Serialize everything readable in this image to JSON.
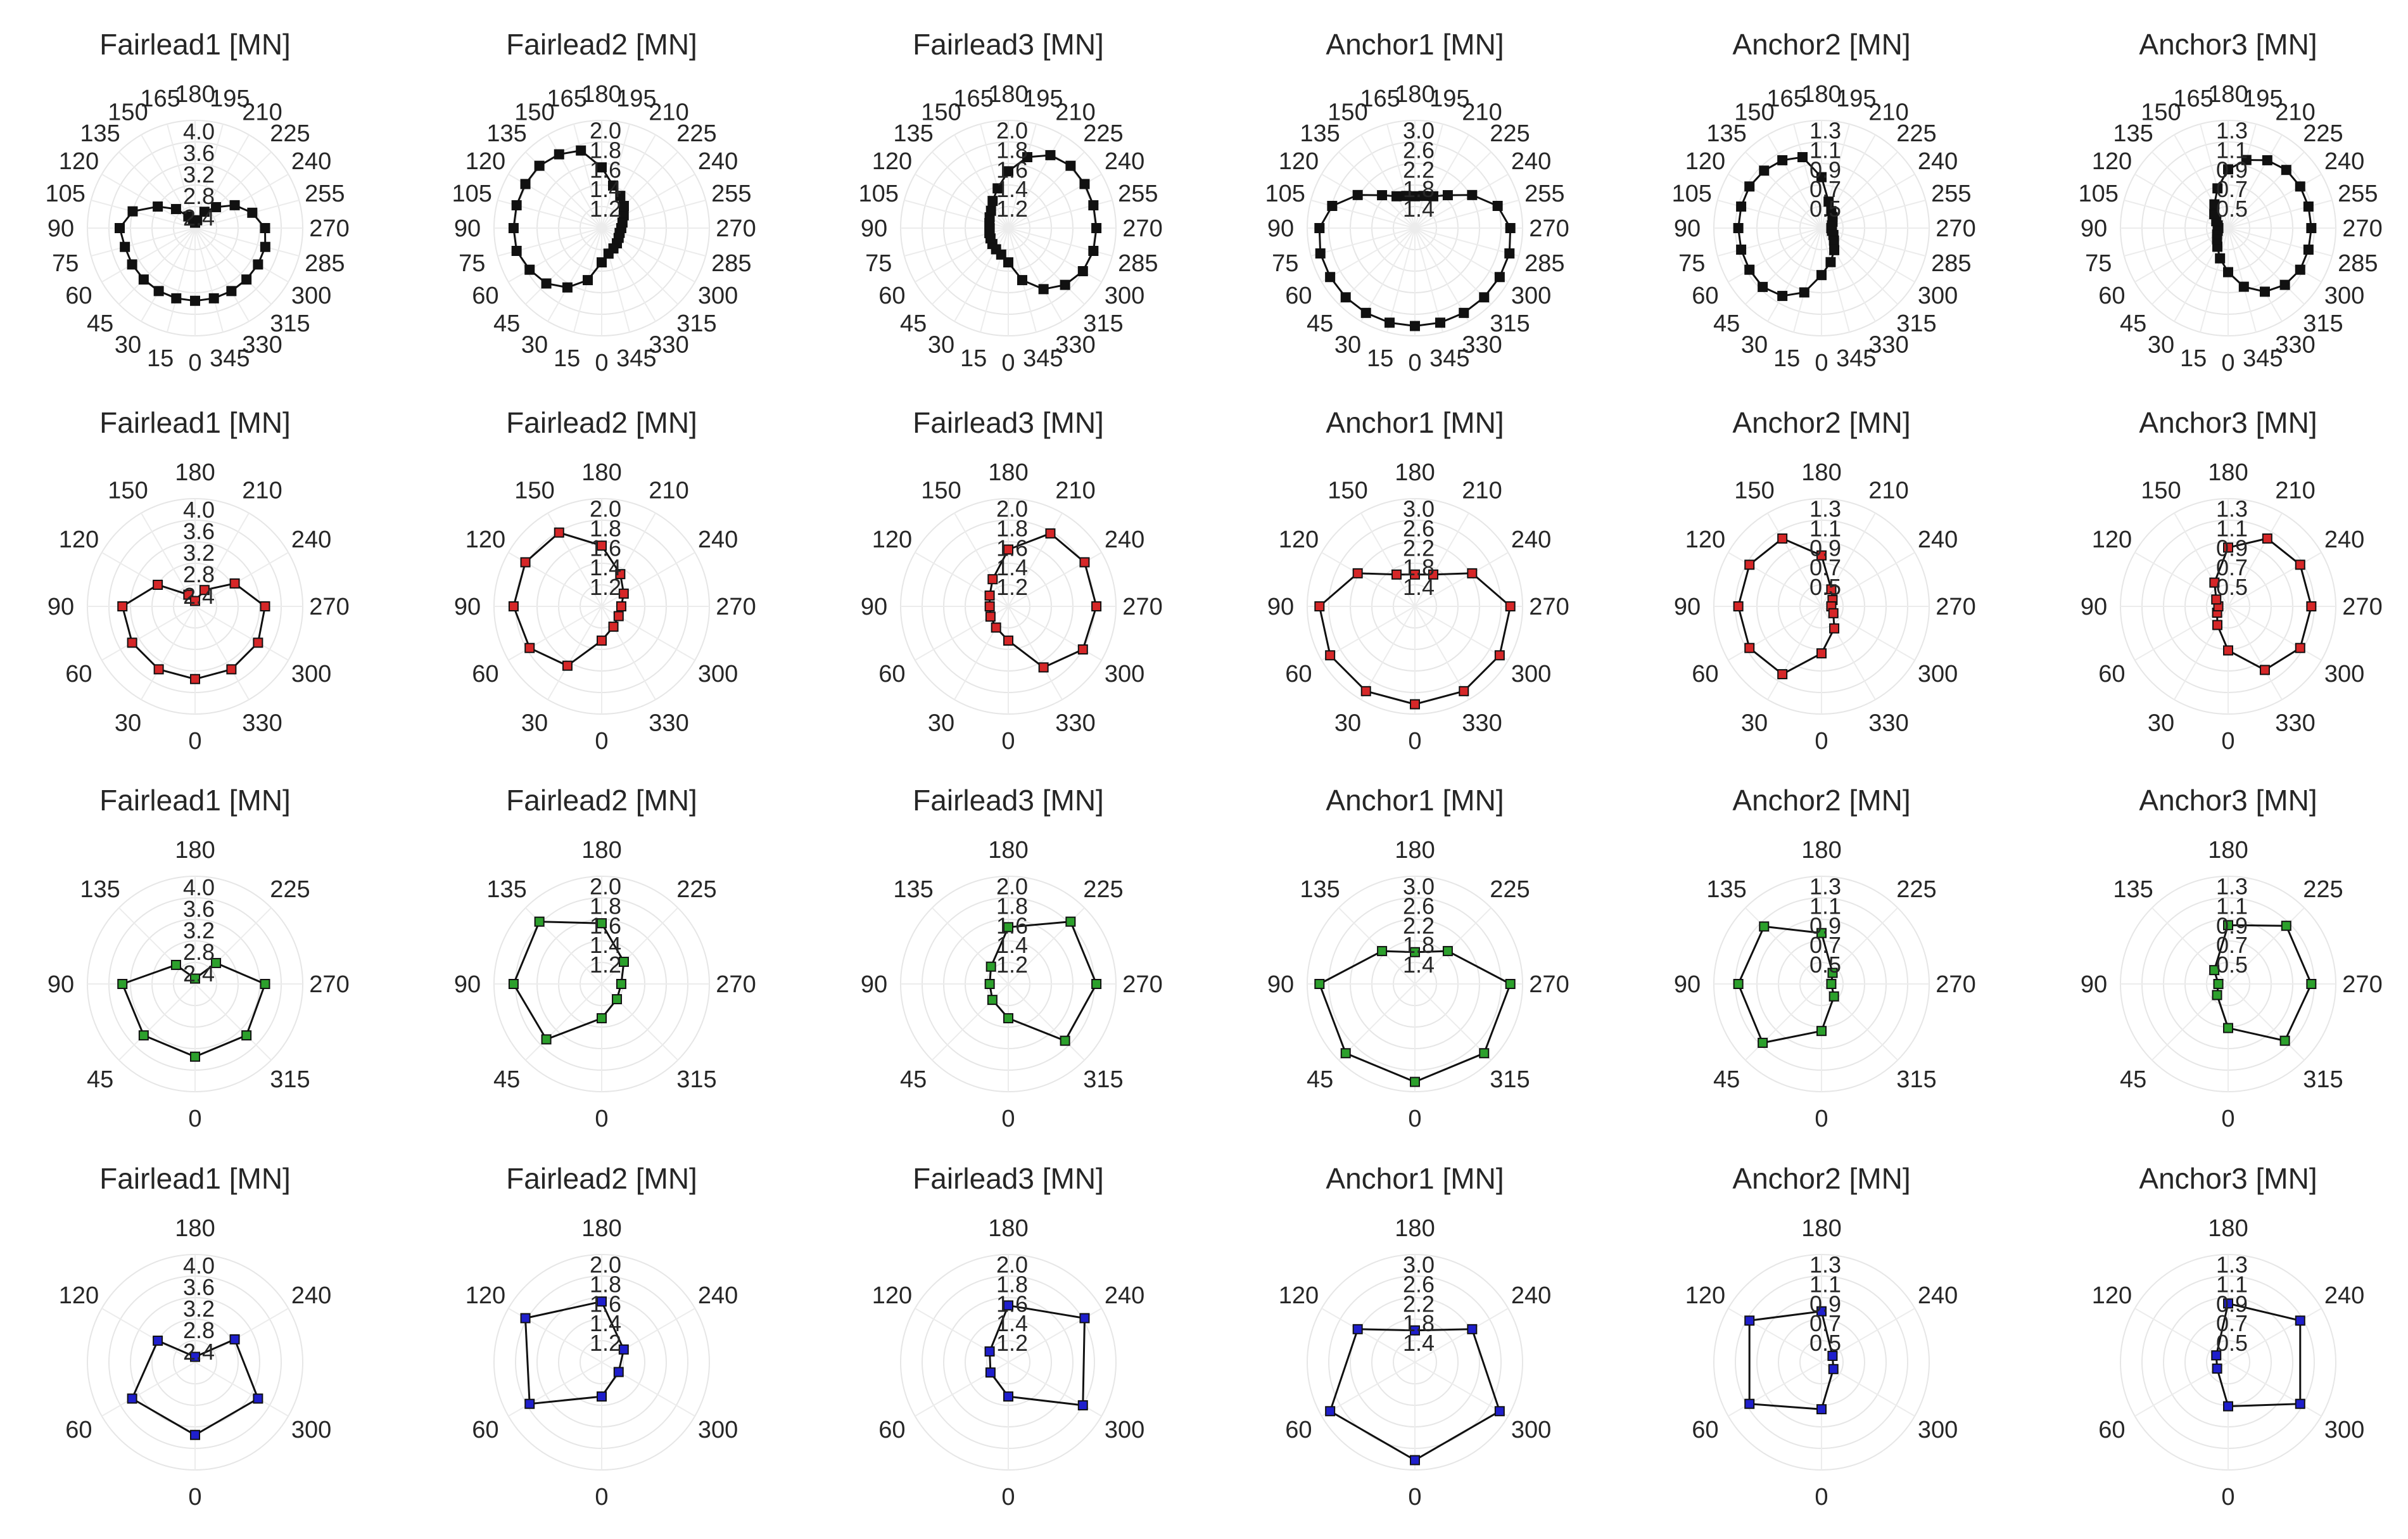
{
  "figure": {
    "rows": [
      {
        "marker_color": "#111111",
        "angles": [
          0,
          15,
          30,
          45,
          60,
          75,
          90,
          105,
          120,
          135,
          150,
          165,
          180,
          195,
          210,
          225,
          240,
          255,
          270,
          285,
          300,
          315,
          330,
          345
        ]
      },
      {
        "marker_color": "#d62728",
        "angles": [
          0,
          30,
          60,
          90,
          120,
          150,
          180,
          210,
          240,
          270,
          300,
          330
        ]
      },
      {
        "marker_color": "#2ca02c",
        "angles": [
          0,
          45,
          90,
          135,
          180,
          225,
          270,
          315
        ]
      },
      {
        "marker_color": "#1f1fcc",
        "angles": [
          0,
          60,
          120,
          180,
          240,
          300
        ]
      }
    ]
  },
  "chart_data": [
    {
      "type": "polar-line",
      "row": 1,
      "col": 1,
      "title": "Fairlead1 [MN]",
      "marker": "square",
      "marker_color": "#111111",
      "rlim": [
        2.2,
        4.2
      ],
      "rticks": [
        "2.4",
        "2.8",
        "3.2",
        "3.6",
        "4.0"
      ],
      "theta": [
        0,
        15,
        30,
        45,
        60,
        75,
        90,
        105,
        120,
        135,
        150,
        165,
        180,
        195,
        210,
        225,
        240,
        255,
        270,
        285,
        300,
        315,
        330,
        345
      ],
      "r": [
        3.55,
        3.55,
        3.55,
        3.55,
        3.55,
        3.55,
        3.6,
        3.4,
        3.0,
        2.7,
        2.45,
        2.35,
        2.3,
        2.35,
        2.55,
        2.75,
        3.05,
        3.3,
        3.5,
        3.55,
        3.55,
        3.55,
        3.55,
        3.55
      ]
    },
    {
      "type": "polar-line",
      "row": 1,
      "col": 2,
      "title": "Fairlead2 [MN]",
      "marker": "square",
      "marker_color": "#111111",
      "rlim": [
        1.0,
        2.1
      ],
      "rticks": [
        "1.2",
        "1.4",
        "1.6",
        "1.8",
        "2.0"
      ],
      "theta": [
        0,
        15,
        30,
        45,
        60,
        75,
        90,
        105,
        120,
        135,
        150,
        165,
        180,
        195,
        210,
        225,
        240,
        255,
        270,
        285,
        300,
        315,
        330,
        345
      ],
      "r": [
        1.35,
        1.55,
        1.7,
        1.8,
        1.85,
        1.9,
        1.9,
        1.9,
        1.9,
        1.9,
        1.87,
        1.82,
        1.62,
        1.45,
        1.38,
        1.32,
        1.26,
        1.22,
        1.2,
        1.19,
        1.2,
        1.22,
        1.24,
        1.27
      ]
    },
    {
      "type": "polar-line",
      "row": 1,
      "col": 3,
      "title": "Fairlead3 [MN]",
      "marker": "square",
      "marker_color": "#111111",
      "rlim": [
        1.0,
        2.1
      ],
      "rticks": [
        "1.2",
        "1.4",
        "1.6",
        "1.8",
        "2.0"
      ],
      "theta": [
        0,
        15,
        30,
        45,
        60,
        75,
        90,
        105,
        120,
        135,
        150,
        165,
        180,
        195,
        210,
        225,
        240,
        255,
        270,
        285,
        300,
        315,
        330,
        345
      ],
      "r": [
        1.35,
        1.28,
        1.25,
        1.23,
        1.21,
        1.2,
        1.19,
        1.2,
        1.22,
        1.25,
        1.32,
        1.42,
        1.58,
        1.75,
        1.86,
        1.9,
        1.9,
        1.9,
        1.9,
        1.9,
        1.88,
        1.82,
        1.72,
        1.55
      ]
    },
    {
      "type": "polar-line",
      "row": 1,
      "col": 4,
      "title": "Anchor1 [MN]",
      "marker": "square",
      "marker_color": "#111111",
      "rlim": [
        1.0,
        3.2
      ],
      "rticks": [
        "1.4",
        "1.8",
        "2.2",
        "2.6",
        "3.0"
      ],
      "theta": [
        0,
        15,
        30,
        45,
        60,
        75,
        90,
        105,
        120,
        135,
        150,
        165,
        180,
        195,
        210,
        225,
        240,
        255,
        270,
        285,
        300,
        315,
        330,
        345
      ],
      "r": [
        3.0,
        3.0,
        3.0,
        3.0,
        3.0,
        3.0,
        2.95,
        2.75,
        2.35,
        1.95,
        1.75,
        1.68,
        1.65,
        1.68,
        1.75,
        1.95,
        2.35,
        2.75,
        2.95,
        3.0,
        3.0,
        3.0,
        3.0,
        3.0
      ]
    },
    {
      "type": "polar-line",
      "row": 1,
      "col": 5,
      "title": "Anchor2 [MN]",
      "marker": "square",
      "marker_color": "#111111",
      "rlim": [
        0.3,
        1.4
      ],
      "rticks": [
        "0.5",
        "0.7",
        "0.9",
        "1.1",
        "1.3"
      ],
      "theta": [
        0,
        15,
        30,
        45,
        60,
        75,
        90,
        105,
        120,
        135,
        150,
        165,
        180,
        195,
        210,
        225,
        240,
        255,
        270,
        285,
        300,
        315,
        330,
        345
      ],
      "r": [
        0.78,
        0.98,
        1.1,
        1.15,
        1.15,
        1.15,
        1.15,
        1.15,
        1.15,
        1.13,
        1.1,
        1.05,
        0.82,
        0.58,
        0.5,
        0.46,
        0.43,
        0.41,
        0.4,
        0.41,
        0.44,
        0.48,
        0.56,
        0.66
      ]
    },
    {
      "type": "polar-line",
      "row": 1,
      "col": 6,
      "title": "Anchor3 [MN]",
      "marker": "square",
      "marker_color": "#111111",
      "rlim": [
        0.3,
        1.4
      ],
      "rticks": [
        "0.5",
        "0.7",
        "0.9",
        "1.1",
        "1.3"
      ],
      "theta": [
        0,
        15,
        30,
        45,
        60,
        75,
        90,
        105,
        120,
        135,
        150,
        165,
        180,
        195,
        210,
        225,
        240,
        255,
        270,
        285,
        300,
        315,
        330,
        345
      ],
      "r": [
        0.75,
        0.62,
        0.52,
        0.46,
        0.43,
        0.41,
        0.4,
        0.41,
        0.44,
        0.5,
        0.58,
        0.72,
        0.9,
        1.02,
        1.1,
        1.14,
        1.15,
        1.15,
        1.15,
        1.15,
        1.15,
        1.12,
        1.05,
        0.92
      ]
    },
    {
      "type": "polar-line",
      "row": 2,
      "col": 1,
      "title": "Fairlead1 [MN]",
      "marker": "square",
      "marker_color": "#d62728",
      "rlim": [
        2.2,
        4.2
      ],
      "rticks": [
        "2.4",
        "2.8",
        "3.2",
        "3.6",
        "4.0"
      ],
      "theta": [
        0,
        30,
        60,
        90,
        120,
        150,
        180,
        210,
        240,
        270,
        300,
        330
      ],
      "r": [
        3.55,
        3.55,
        3.55,
        3.55,
        3.0,
        2.45,
        2.3,
        2.55,
        3.05,
        3.5,
        3.55,
        3.55
      ]
    },
    {
      "type": "polar-line",
      "row": 2,
      "col": 2,
      "title": "Fairlead2 [MN]",
      "marker": "square",
      "marker_color": "#d62728",
      "rlim": [
        1.0,
        2.1
      ],
      "rticks": [
        "1.2",
        "1.4",
        "1.6",
        "1.8",
        "2.0"
      ],
      "theta": [
        0,
        30,
        60,
        90,
        120,
        150,
        180,
        210,
        240,
        270,
        300,
        330
      ],
      "r": [
        1.35,
        1.7,
        1.85,
        1.9,
        1.9,
        1.87,
        1.62,
        1.38,
        1.26,
        1.2,
        1.2,
        1.24
      ]
    },
    {
      "type": "polar-line",
      "row": 2,
      "col": 3,
      "title": "Fairlead3 [MN]",
      "marker": "square",
      "marker_color": "#d62728",
      "rlim": [
        1.0,
        2.1
      ],
      "rticks": [
        "1.2",
        "1.4",
        "1.6",
        "1.8",
        "2.0"
      ],
      "theta": [
        0,
        30,
        60,
        90,
        120,
        150,
        180,
        210,
        240,
        270,
        300,
        330
      ],
      "r": [
        1.35,
        1.25,
        1.21,
        1.19,
        1.22,
        1.32,
        1.58,
        1.86,
        1.9,
        1.9,
        1.88,
        1.72
      ]
    },
    {
      "type": "polar-line",
      "row": 2,
      "col": 4,
      "title": "Anchor1 [MN]",
      "marker": "square",
      "marker_color": "#d62728",
      "rlim": [
        1.0,
        3.2
      ],
      "rticks": [
        "1.4",
        "1.8",
        "2.2",
        "2.6",
        "3.0"
      ],
      "theta": [
        0,
        30,
        60,
        90,
        120,
        150,
        180,
        210,
        240,
        270,
        300,
        330
      ],
      "r": [
        3.0,
        3.0,
        3.0,
        2.95,
        2.35,
        1.75,
        1.65,
        1.75,
        2.35,
        2.95,
        3.0,
        3.0
      ]
    },
    {
      "type": "polar-line",
      "row": 2,
      "col": 5,
      "title": "Anchor2 [MN]",
      "marker": "square",
      "marker_color": "#d62728",
      "rlim": [
        0.3,
        1.4
      ],
      "rticks": [
        "0.5",
        "0.7",
        "0.9",
        "1.1",
        "1.3"
      ],
      "theta": [
        0,
        30,
        60,
        90,
        120,
        150,
        180,
        210,
        240,
        270,
        300,
        330
      ],
      "r": [
        0.78,
        1.1,
        1.15,
        1.15,
        1.15,
        1.1,
        0.82,
        0.5,
        0.43,
        0.4,
        0.44,
        0.56
      ]
    },
    {
      "type": "polar-line",
      "row": 2,
      "col": 6,
      "title": "Anchor3 [MN]",
      "marker": "square",
      "marker_color": "#d62728",
      "rlim": [
        0.3,
        1.4
      ],
      "rticks": [
        "0.5",
        "0.7",
        "0.9",
        "1.1",
        "1.3"
      ],
      "theta": [
        0,
        30,
        60,
        90,
        120,
        150,
        180,
        210,
        240,
        270,
        300,
        330
      ],
      "r": [
        0.75,
        0.52,
        0.43,
        0.4,
        0.44,
        0.58,
        0.9,
        1.1,
        1.15,
        1.15,
        1.15,
        1.05
      ]
    },
    {
      "type": "polar-line",
      "row": 3,
      "col": 1,
      "title": "Fairlead1 [MN]",
      "marker": "square",
      "marker_color": "#2ca02c",
      "rlim": [
        2.2,
        4.2
      ],
      "rticks": [
        "2.4",
        "2.8",
        "3.2",
        "3.6",
        "4.0"
      ],
      "theta": [
        0,
        45,
        90,
        135,
        180,
        225,
        270,
        315
      ],
      "r": [
        3.55,
        3.55,
        3.55,
        2.7,
        2.3,
        2.75,
        3.5,
        3.55
      ]
    },
    {
      "type": "polar-line",
      "row": 3,
      "col": 2,
      "title": "Fairlead2 [MN]",
      "marker": "square",
      "marker_color": "#2ca02c",
      "rlim": [
        1.0,
        2.1
      ],
      "rticks": [
        "1.2",
        "1.4",
        "1.6",
        "1.8",
        "2.0"
      ],
      "theta": [
        0,
        45,
        90,
        135,
        180,
        225,
        270,
        315
      ],
      "r": [
        1.35,
        1.8,
        1.9,
        1.9,
        1.62,
        1.32,
        1.2,
        1.22
      ]
    },
    {
      "type": "polar-line",
      "row": 3,
      "col": 3,
      "title": "Fairlead3 [MN]",
      "marker": "square",
      "marker_color": "#2ca02c",
      "rlim": [
        1.0,
        2.1
      ],
      "rticks": [
        "1.2",
        "1.4",
        "1.6",
        "1.8",
        "2.0"
      ],
      "theta": [
        0,
        45,
        90,
        135,
        180,
        225,
        270,
        315
      ],
      "r": [
        1.35,
        1.23,
        1.19,
        1.25,
        1.58,
        1.9,
        1.9,
        1.82
      ]
    },
    {
      "type": "polar-line",
      "row": 3,
      "col": 4,
      "title": "Anchor1 [MN]",
      "marker": "square",
      "marker_color": "#2ca02c",
      "rlim": [
        1.0,
        3.2
      ],
      "rticks": [
        "1.4",
        "1.8",
        "2.2",
        "2.6",
        "3.0"
      ],
      "theta": [
        0,
        45,
        90,
        135,
        180,
        225,
        270,
        315
      ],
      "r": [
        3.0,
        3.0,
        2.95,
        1.95,
        1.65,
        1.95,
        2.95,
        3.0
      ]
    },
    {
      "type": "polar-line",
      "row": 3,
      "col": 5,
      "title": "Anchor2 [MN]",
      "marker": "square",
      "marker_color": "#2ca02c",
      "rlim": [
        0.3,
        1.4
      ],
      "rticks": [
        "0.5",
        "0.7",
        "0.9",
        "1.1",
        "1.3"
      ],
      "theta": [
        0,
        45,
        90,
        135,
        180,
        225,
        270,
        315
      ],
      "r": [
        0.78,
        1.15,
        1.15,
        1.13,
        0.82,
        0.46,
        0.4,
        0.48
      ]
    },
    {
      "type": "polar-line",
      "row": 3,
      "col": 6,
      "title": "Anchor3 [MN]",
      "marker": "square",
      "marker_color": "#2ca02c",
      "rlim": [
        0.3,
        1.4
      ],
      "rticks": [
        "0.5",
        "0.7",
        "0.9",
        "1.1",
        "1.3"
      ],
      "theta": [
        0,
        45,
        90,
        135,
        180,
        225,
        270,
        315
      ],
      "r": [
        0.75,
        0.46,
        0.4,
        0.5,
        0.9,
        1.14,
        1.15,
        1.12
      ]
    },
    {
      "type": "polar-line",
      "row": 4,
      "col": 1,
      "title": "Fairlead1 [MN]",
      "marker": "square",
      "marker_color": "#1f1fcc",
      "rlim": [
        2.2,
        4.2
      ],
      "rticks": [
        "2.4",
        "2.8",
        "3.2",
        "3.6",
        "4.0"
      ],
      "theta": [
        0,
        60,
        120,
        180,
        240,
        300
      ],
      "r": [
        3.55,
        3.55,
        3.0,
        2.3,
        3.05,
        3.55
      ]
    },
    {
      "type": "polar-line",
      "row": 4,
      "col": 2,
      "title": "Fairlead2 [MN]",
      "marker": "square",
      "marker_color": "#1f1fcc",
      "rlim": [
        1.0,
        2.1
      ],
      "rticks": [
        "1.2",
        "1.4",
        "1.6",
        "1.8",
        "2.0"
      ],
      "theta": [
        0,
        60,
        120,
        180,
        240,
        300
      ],
      "r": [
        1.35,
        1.85,
        1.9,
        1.62,
        1.26,
        1.2
      ]
    },
    {
      "type": "polar-line",
      "row": 4,
      "col": 3,
      "title": "Fairlead3 [MN]",
      "marker": "square",
      "marker_color": "#1f1fcc",
      "rlim": [
        1.0,
        2.1
      ],
      "rticks": [
        "1.2",
        "1.4",
        "1.6",
        "1.8",
        "2.0"
      ],
      "theta": [
        0,
        60,
        120,
        180,
        240,
        300
      ],
      "r": [
        1.35,
        1.21,
        1.22,
        1.58,
        1.9,
        1.88
      ]
    },
    {
      "type": "polar-line",
      "row": 4,
      "col": 4,
      "title": "Anchor1 [MN]",
      "marker": "square",
      "marker_color": "#1f1fcc",
      "rlim": [
        1.0,
        3.2
      ],
      "rticks": [
        "1.4",
        "1.8",
        "2.2",
        "2.6",
        "3.0"
      ],
      "theta": [
        0,
        60,
        120,
        180,
        240,
        300
      ],
      "r": [
        3.0,
        3.0,
        2.35,
        1.65,
        2.35,
        3.0
      ]
    },
    {
      "type": "polar-line",
      "row": 4,
      "col": 5,
      "title": "Anchor2 [MN]",
      "marker": "square",
      "marker_color": "#1f1fcc",
      "rlim": [
        0.3,
        1.4
      ],
      "rticks": [
        "0.5",
        "0.7",
        "0.9",
        "1.1",
        "1.3"
      ],
      "theta": [
        0,
        60,
        120,
        180,
        240,
        300
      ],
      "r": [
        0.78,
        1.15,
        1.15,
        0.82,
        0.43,
        0.44
      ]
    },
    {
      "type": "polar-line",
      "row": 4,
      "col": 6,
      "title": "Anchor3 [MN]",
      "marker": "square",
      "marker_color": "#1f1fcc",
      "rlim": [
        0.3,
        1.4
      ],
      "rticks": [
        "0.5",
        "0.7",
        "0.9",
        "1.1",
        "1.3"
      ],
      "theta": [
        0,
        60,
        120,
        180,
        240,
        300
      ],
      "r": [
        0.75,
        0.43,
        0.44,
        0.9,
        1.15,
        1.15
      ]
    }
  ]
}
